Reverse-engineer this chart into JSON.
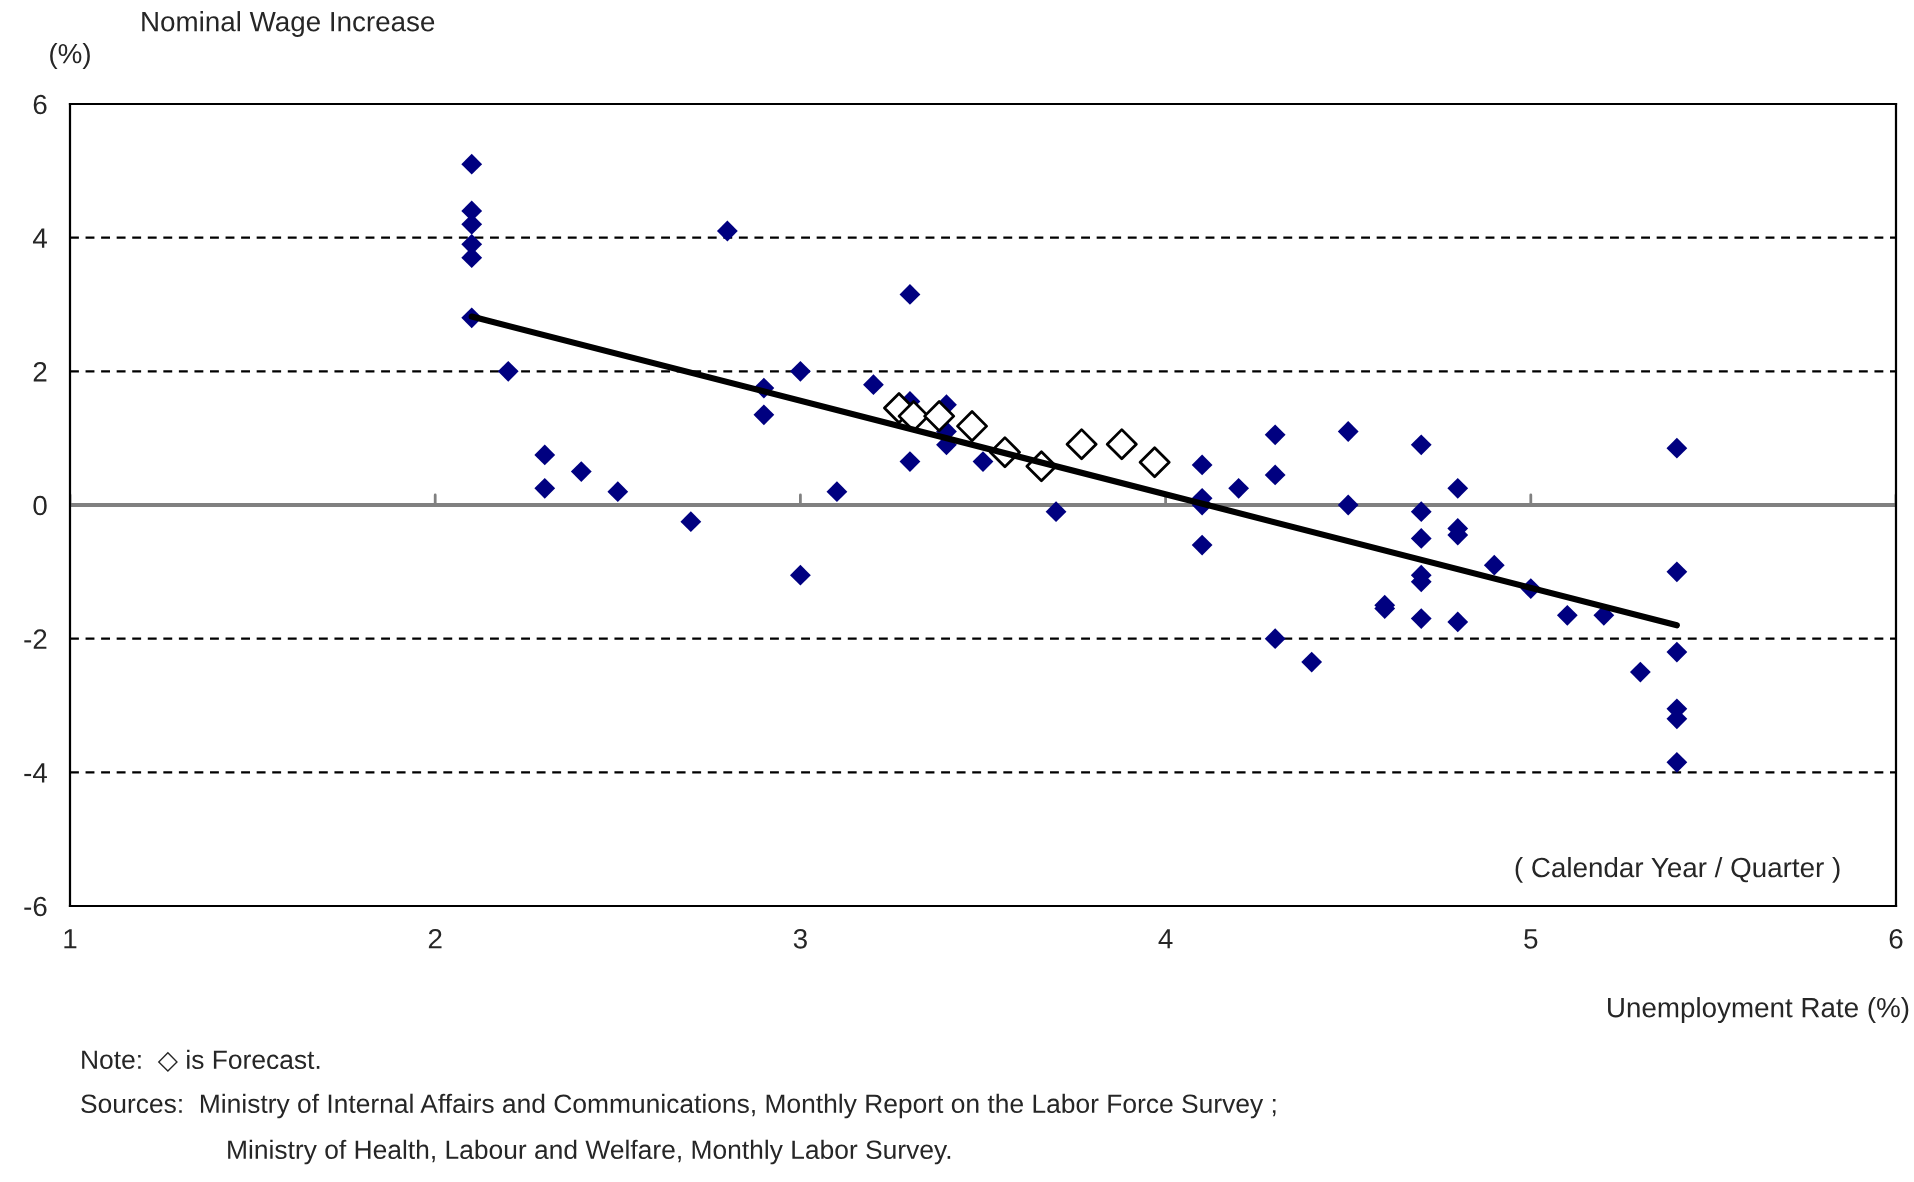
{
  "chart_data": {
    "type": "scatter",
    "title": "Nominal Wage Increase",
    "ylabel": "(%)",
    "xlabel": "Unemployment Rate (%)",
    "xlim": [
      1,
      6
    ],
    "xticks": [
      1,
      2,
      3,
      4,
      5,
      6
    ],
    "ylim": [
      -6,
      6
    ],
    "yticks": [
      -6,
      -4,
      -2,
      0,
      2,
      4,
      6
    ],
    "grid": "y",
    "marker": "diamond",
    "ref_lines": [
      {
        "axis": "y",
        "value": 0,
        "color": "#808080",
        "line_style": "solid"
      }
    ],
    "series": [
      {
        "color": "#000080",
        "x": [
          2.1,
          2.1,
          2.1,
          2.1,
          2.1,
          2.1,
          2.2,
          2.3,
          2.3,
          2.4,
          2.5,
          2.7,
          2.8,
          2.9,
          2.9,
          3.0,
          3.0,
          3.1,
          3.2,
          3.3,
          3.3,
          3.3,
          3.4,
          3.4,
          3.4,
          3.5,
          3.7,
          4.1,
          4.1,
          4.1,
          4.1,
          4.2,
          4.3,
          4.3,
          4.3,
          4.4,
          4.5,
          4.5,
          4.6,
          4.6,
          4.7,
          4.7,
          4.7,
          4.7,
          4.7,
          4.7,
          4.8,
          4.8,
          4.8,
          4.8,
          4.9,
          5.0,
          5.1,
          5.2,
          5.3,
          5.4,
          5.4,
          5.4,
          5.4,
          5.4,
          5.4
        ],
        "values": [
          5.1,
          4.4,
          4.2,
          3.9,
          3.7,
          2.8,
          2.0,
          0.75,
          0.25,
          0.5,
          0.2,
          -0.25,
          4.1,
          1.75,
          1.35,
          2.0,
          -1.05,
          0.2,
          1.8,
          3.15,
          1.55,
          0.65,
          1.5,
          1.1,
          0.9,
          0.65,
          -0.1,
          0.6,
          0.1,
          0.0,
          -0.6,
          0.25,
          1.05,
          0.45,
          -2.0,
          -2.35,
          1.1,
          0.0,
          -1.5,
          -1.55,
          0.9,
          -0.1,
          -0.5,
          -1.05,
          -1.15,
          -1.7,
          0.25,
          -0.35,
          -0.45,
          -1.75,
          -0.9,
          -1.25,
          -1.65,
          -1.65,
          -2.5,
          0.85,
          -1.0,
          -2.2,
          -3.05,
          -3.2,
          -3.85
        ]
      },
      {
        "color": "#ffffff",
        "x": [
          3.27,
          3.31,
          3.38,
          3.47,
          3.56,
          3.66,
          3.77,
          3.88,
          3.97
        ],
        "values": [
          1.45,
          1.33,
          1.33,
          1.18,
          0.79,
          0.58,
          0.91,
          0.91,
          0.64
        ]
      },
      {
        "type": "line",
        "color": "#000000",
        "marker": "none",
        "x": [
          2.1,
          5.4
        ],
        "values": [
          2.82,
          -1.8
        ]
      }
    ],
    "annotations": [
      "( Calendar Year / Quarter )",
      "Note:  ◇ is Forecast.",
      "Sources:  Ministry of Internal Affairs and Communications, Monthly Report on the Labor Force Survey ;",
      "Ministry of Health, Labour and Welfare, Monthly Labor Survey."
    ]
  }
}
